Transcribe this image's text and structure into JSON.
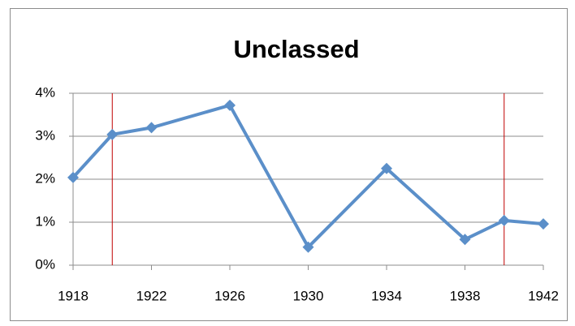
{
  "chart_data": {
    "type": "line",
    "title": "Unclassed",
    "x": [
      1918,
      1920,
      1922,
      1926,
      1930,
      1934,
      1938,
      1940,
      1942
    ],
    "values": [
      2.04,
      3.04,
      3.2,
      3.72,
      0.42,
      2.25,
      0.6,
      1.04,
      0.96
    ],
    "color": "#5b8fc9",
    "xlim": [
      1918,
      1942
    ],
    "xticks": [
      1918,
      1922,
      1926,
      1930,
      1934,
      1938,
      1942
    ],
    "ylim": [
      0,
      4
    ],
    "yticks": [
      {
        "value": 0,
        "label": "0%"
      },
      {
        "value": 1,
        "label": "1%"
      },
      {
        "value": 2,
        "label": "2%"
      },
      {
        "value": 3,
        "label": "3%"
      },
      {
        "value": 4,
        "label": "4%"
      }
    ],
    "grid": true,
    "reference_lines": {
      "x": [
        1920,
        1940
      ],
      "color": "#c00000"
    }
  }
}
